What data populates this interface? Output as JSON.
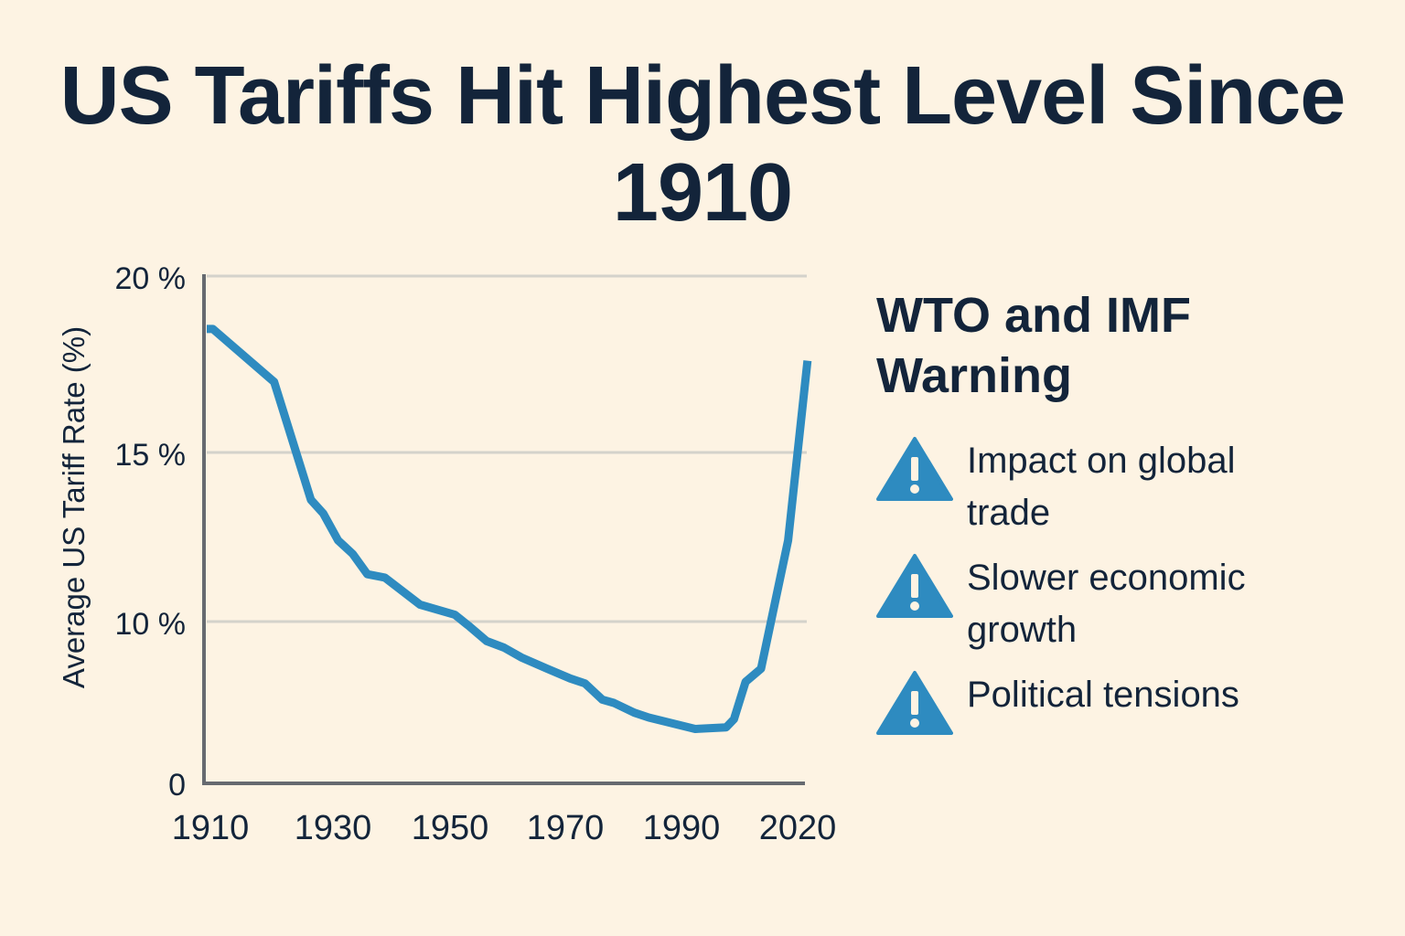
{
  "title": "US Tariffs Hit Highest Level Since 1910",
  "panel": {
    "heading": "WTO and IMF Warning",
    "icon_color": "#2e8bc0",
    "warnings": [
      {
        "icon": "warning-triangle-icon",
        "text": "Impact on global trade"
      },
      {
        "icon": "warning-triangle-icon",
        "text": "Slower economic growth"
      },
      {
        "icon": "warning-triangle-icon",
        "text": "Political tensions"
      }
    ]
  },
  "chart_data": {
    "type": "line",
    "title": "US Tariffs Hit Highest Level Since 1910",
    "xlabel": "",
    "ylabel": "Average US Tariff Rate (%)",
    "x_ticks": [
      1910,
      1930,
      1950,
      1970,
      1990,
      2020
    ],
    "x_tick_labels": [
      "1910",
      "1930",
      "1950",
      "1970",
      "1990",
      "2020"
    ],
    "y_ticks": [
      0,
      10,
      15,
      20
    ],
    "y_tick_labels": [
      "0",
      "10 %",
      "15 %",
      "20 %"
    ],
    "ylim": [
      0,
      20
    ],
    "xlim": [
      1910,
      2024
    ],
    "grid": true,
    "line_color": "#2e8bc0",
    "series": [
      {
        "name": "Average US Tariff Rate",
        "x": [
          1910,
          1911,
          1921,
          1927,
          1929,
          1931.5,
          1934,
          1936.5,
          1939.5,
          1945.5,
          1951.5,
          1954,
          1957,
          1960,
          1963,
          1967.5,
          1971.5,
          1974,
          1977,
          1979,
          1982.5,
          1985,
          1994.5,
          2002.5,
          2004.5,
          2007.5,
          2011.5,
          2018.5,
          2023.5
        ],
        "values": [
          18.5,
          18.5,
          17.0,
          13.6,
          13.2,
          12.4,
          12.0,
          11.4,
          11.3,
          10.5,
          10.2,
          9.7,
          8.8,
          8.4,
          7.8,
          7.1,
          6.5,
          6.2,
          5.2,
          5.0,
          4.4,
          4.1,
          3.4,
          3.5,
          4.0,
          6.3,
          7.1,
          12.4,
          17.6
        ]
      }
    ]
  }
}
